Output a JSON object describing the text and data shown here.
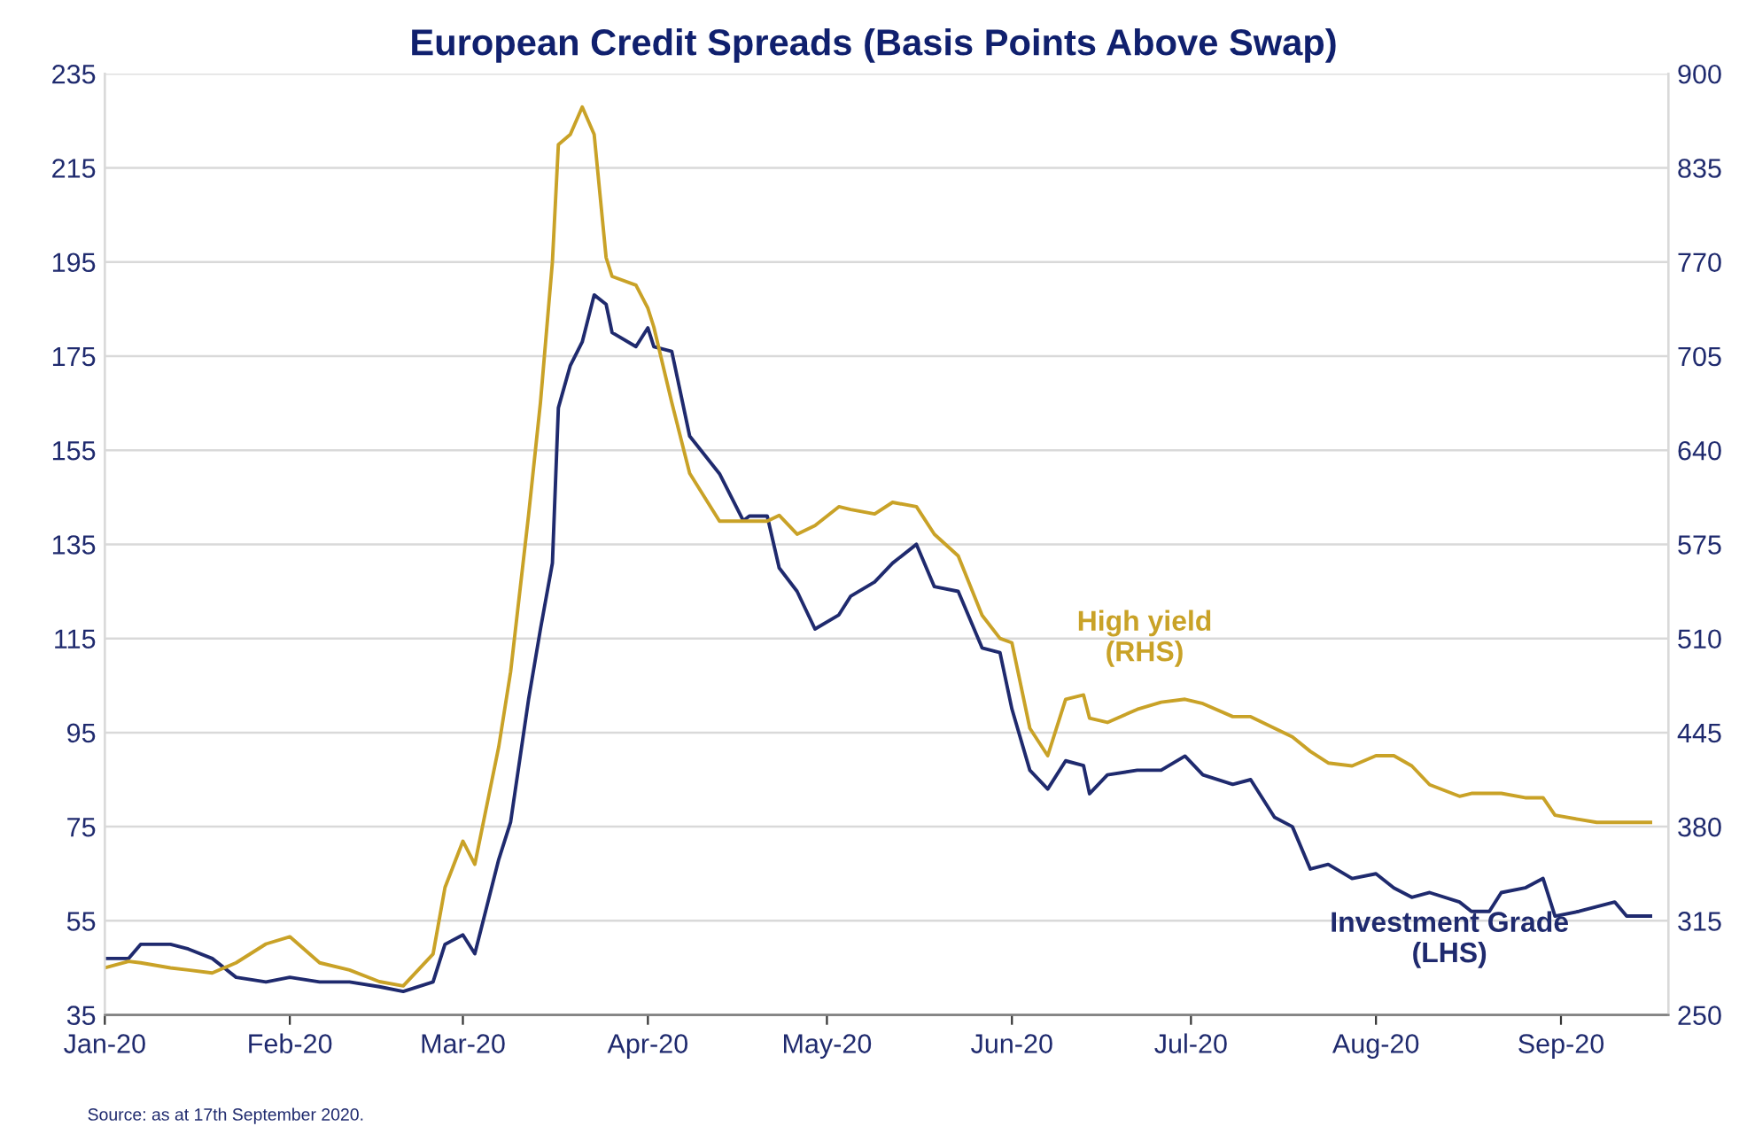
{
  "chart_data": {
    "type": "line",
    "title": "European Credit Spreads (Basis Points Above Swap)",
    "x": [
      "2020-01-01",
      "2020-01-05",
      "2020-01-07",
      "2020-01-12",
      "2020-01-15",
      "2020-01-19",
      "2020-01-23",
      "2020-01-28",
      "2020-02-01",
      "2020-02-06",
      "2020-02-11",
      "2020-02-16",
      "2020-02-20",
      "2020-02-25",
      "2020-02-27",
      "2020-03-01",
      "2020-03-03",
      "2020-03-07",
      "2020-03-09",
      "2020-03-12",
      "2020-03-14",
      "2020-03-16",
      "2020-03-17",
      "2020-03-19",
      "2020-03-21",
      "2020-03-23",
      "2020-03-25",
      "2020-03-26",
      "2020-03-30",
      "2020-04-01",
      "2020-04-02",
      "2020-04-05",
      "2020-04-08",
      "2020-04-13",
      "2020-04-17",
      "2020-04-18",
      "2020-04-21",
      "2020-04-23",
      "2020-04-26",
      "2020-04-29",
      "2020-05-03",
      "2020-05-05",
      "2020-05-09",
      "2020-05-12",
      "2020-05-16",
      "2020-05-19",
      "2020-05-23",
      "2020-05-27",
      "2020-05-30",
      "2020-06-01",
      "2020-06-04",
      "2020-06-07",
      "2020-06-10",
      "2020-06-13",
      "2020-06-14",
      "2020-06-17",
      "2020-06-22",
      "2020-06-26",
      "2020-06-30",
      "2020-07-03",
      "2020-07-08",
      "2020-07-11",
      "2020-07-15",
      "2020-07-18",
      "2020-07-21",
      "2020-07-24",
      "2020-07-28",
      "2020-08-01",
      "2020-08-04",
      "2020-08-07",
      "2020-08-10",
      "2020-08-15",
      "2020-08-17",
      "2020-08-20",
      "2020-08-22",
      "2020-08-26",
      "2020-08-29",
      "2020-08-31",
      "2020-09-04",
      "2020-09-07",
      "2020-09-10",
      "2020-09-12",
      "2020-09-16"
    ],
    "series": [
      {
        "name": "Investment Grade\n(LHS)",
        "color": "#1f2a6e",
        "axis": "y",
        "values": [
          47,
          47,
          50,
          50,
          49,
          47,
          43,
          42,
          43,
          42,
          42,
          41,
          40,
          42,
          50,
          52,
          48,
          68,
          76,
          102,
          117,
          131,
          164,
          173,
          178,
          188,
          186,
          180,
          177,
          181,
          177,
          176,
          158,
          150,
          140,
          141,
          141,
          130,
          125,
          117,
          120,
          124,
          127,
          131,
          135,
          126,
          125,
          113,
          112,
          100,
          87,
          83,
          89,
          88,
          82,
          86,
          87,
          87,
          90,
          86,
          84,
          85,
          77,
          75,
          66,
          67,
          64,
          65,
          62,
          60,
          61,
          59,
          57,
          57,
          61,
          62,
          64,
          56,
          57,
          58,
          59,
          56,
          56
        ]
      },
      {
        "name": "High yield\n(RHS)",
        "color": "#c9a227",
        "axis": "y2",
        "values": [
          282.5,
          287,
          286,
          282.5,
          281,
          279,
          286,
          299,
          304,
          286,
          281,
          273,
          270,
          292,
          338,
          370,
          354,
          435,
          487,
          595,
          673,
          770,
          851,
          858,
          877,
          858,
          773,
          760,
          754,
          738,
          725,
          673,
          624,
          591,
          591,
          591,
          591,
          595,
          582,
          588,
          601,
          599,
          596,
          604,
          601,
          582,
          567,
          526,
          510,
          507,
          448,
          429,
          468,
          471,
          455,
          452,
          461,
          466,
          468,
          465,
          456,
          456,
          448,
          442,
          432,
          424,
          422,
          429,
          429,
          422,
          409,
          401,
          403,
          403,
          403,
          400,
          400,
          388,
          385,
          383,
          383,
          383,
          383
        ]
      }
    ],
    "xlim": [
      "2020-01-01",
      "2020-09-19"
    ],
    "xticks": [
      {
        "value": "2020-01-01",
        "label": "Jan-20"
      },
      {
        "value": "2020-02-01",
        "label": "Feb-20"
      },
      {
        "value": "2020-03-01",
        "label": "Mar-20"
      },
      {
        "value": "2020-04-01",
        "label": "Apr-20"
      },
      {
        "value": "2020-05-01",
        "label": "May-20"
      },
      {
        "value": "2020-06-01",
        "label": "Jun-20"
      },
      {
        "value": "2020-07-01",
        "label": "Jul-20"
      },
      {
        "value": "2020-08-01",
        "label": "Aug-20"
      },
      {
        "value": "2020-09-01",
        "label": "Sep-20"
      }
    ],
    "ylim": [
      35,
      235
    ],
    "yticks": [
      35,
      55,
      75,
      95,
      115,
      135,
      155,
      175,
      195,
      215,
      235
    ],
    "y2lim": [
      250,
      900
    ],
    "y2ticks": [
      250,
      315,
      380,
      445,
      510,
      575,
      640,
      705,
      770,
      835,
      900
    ],
    "grid": "y",
    "legend": false,
    "marker": "none",
    "line_style": "solid",
    "annotations": [
      "Source: as at 17th September 2020."
    ]
  }
}
